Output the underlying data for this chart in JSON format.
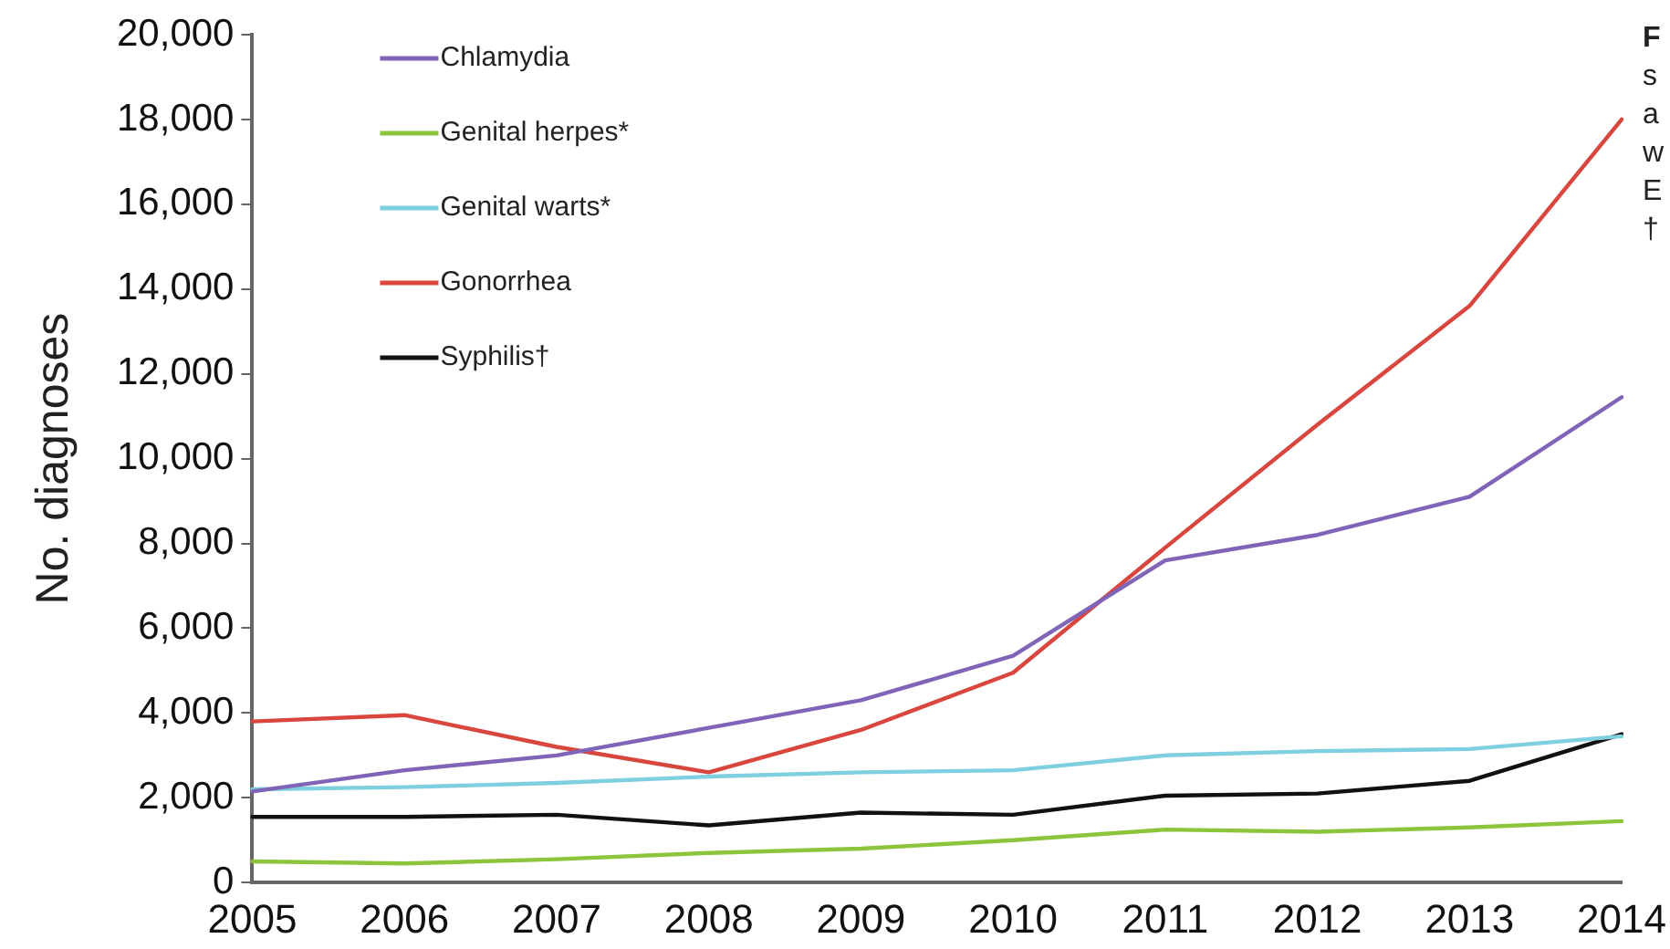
{
  "chart_data": {
    "type": "line",
    "ylabel": "No. diagnoses",
    "categories": [
      "2005",
      "2006",
      "2007",
      "2008",
      "2009",
      "2010",
      "2011",
      "2012",
      "2013",
      "2014"
    ],
    "series": [
      {
        "name": "Chlamydia",
        "color": "#8064b8",
        "values": [
          2150,
          2650,
          3000,
          3650,
          4300,
          5350,
          7600,
          8200,
          9100,
          11450
        ]
      },
      {
        "name": "Genital herpes*",
        "color": "#8cc43c",
        "values": [
          500,
          450,
          550,
          700,
          800,
          1000,
          1250,
          1200,
          1300,
          1450
        ]
      },
      {
        "name": "Genital warts*",
        "color": "#7ecfe0",
        "values": [
          2200,
          2250,
          2350,
          2500,
          2600,
          2650,
          3000,
          3100,
          3150,
          3450
        ]
      },
      {
        "name": "Gonorrhea",
        "color": "#d9463e",
        "values": [
          3800,
          3950,
          3200,
          2600,
          3600,
          4950,
          7900,
          10800,
          13600,
          18000
        ]
      },
      {
        "name": "Syphilis†",
        "color": "#111111",
        "values": [
          1550,
          1550,
          1600,
          1350,
          1650,
          1600,
          2050,
          2100,
          2400,
          3500
        ]
      }
    ],
    "ylim": [
      0,
      20000
    ],
    "yticks": [
      0,
      {
        "value": 2000,
        "label": "2,000"
      },
      {
        "value": 4000,
        "label": "4,000"
      },
      {
        "value": 6000,
        "label": "6,000"
      },
      {
        "value": 8000,
        "label": "8,000"
      },
      {
        "value": 10000,
        "label": "10,000"
      },
      {
        "value": 12000,
        "label": "12,000"
      },
      {
        "value": 14000,
        "label": "14,000"
      },
      {
        "value": 16000,
        "label": "16,000"
      },
      {
        "value": 18000,
        "label": "18,000"
      },
      {
        "value": 20000,
        "label": "20,000"
      }
    ],
    "grid": false,
    "legend": "top left",
    "marker": "none",
    "line_style": "solid",
    "annotations": [
      "F",
      "s",
      "a",
      "w",
      "E",
      "†"
    ]
  }
}
